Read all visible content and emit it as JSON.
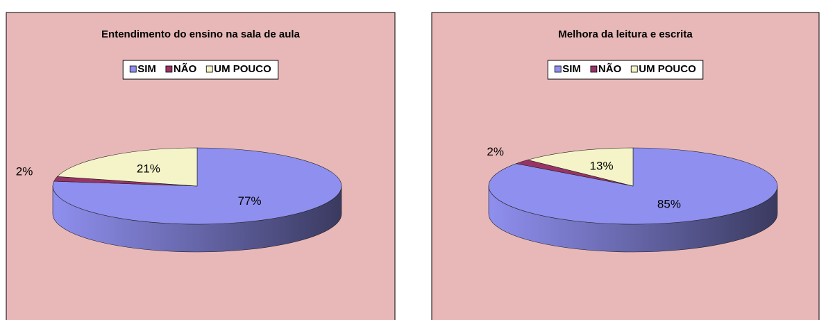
{
  "chart_data": [
    {
      "type": "pie",
      "title": "Entendimento do ensino na sala de aula",
      "categories": [
        "SIM",
        "NÃO",
        "UM POUCO"
      ],
      "values": [
        77,
        2,
        21
      ],
      "value_labels": [
        "77%",
        "2%",
        "21%"
      ],
      "colors": [
        "#8f8fef",
        "#993366",
        "#f4f4c8"
      ],
      "legend": "top"
    },
    {
      "type": "pie",
      "title": "Melhora da leitura e escrita",
      "categories": [
        "SIM",
        "NÃO",
        "UM POUCO"
      ],
      "values": [
        85,
        2,
        13
      ],
      "value_labels": [
        "85%",
        "2%",
        "13%"
      ],
      "colors": [
        "#8f8fef",
        "#993366",
        "#f4f4c8"
      ],
      "legend": "top"
    }
  ]
}
